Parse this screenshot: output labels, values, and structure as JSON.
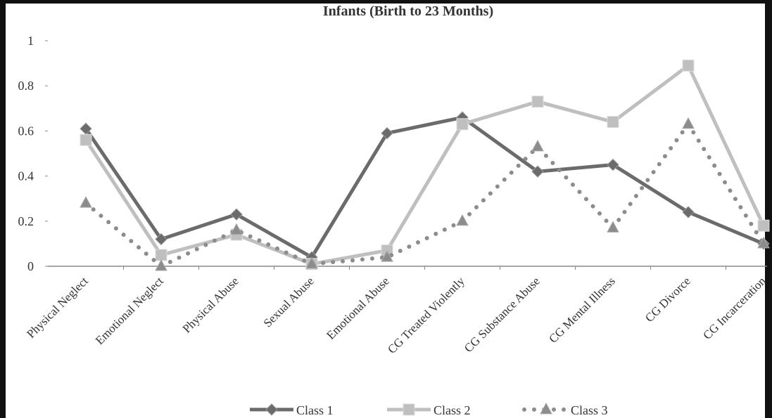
{
  "chart_data": {
    "type": "line",
    "title": "Infants (Birth to 23 Months)",
    "categories": [
      "Physical Neglect",
      "Emotional Neglect",
      "Physical Abuse",
      "Sexual Abuse",
      "Emotional Abuse",
      "CG Treated Violently",
      "CG Substance Abuse",
      "CG Mental Illness",
      "CG Divorce",
      "CG Incarceration"
    ],
    "series": [
      {
        "name": "Class 1",
        "color": "#6b6b6b",
        "marker": "diamond",
        "dash": "solid",
        "values": [
          0.61,
          0.12,
          0.23,
          0.04,
          0.59,
          0.66,
          0.42,
          0.45,
          0.24,
          0.1
        ]
      },
      {
        "name": "Class 2",
        "color": "#bfbfbf",
        "marker": "square",
        "dash": "solid",
        "values": [
          0.56,
          0.05,
          0.14,
          0.01,
          0.07,
          0.63,
          0.73,
          0.64,
          0.89,
          0.18
        ]
      },
      {
        "name": "Class 3",
        "color": "#8c8c8c",
        "marker": "triangle",
        "dash": "dotted",
        "values": [
          0.28,
          0.0,
          0.16,
          0.01,
          0.04,
          0.2,
          0.53,
          0.17,
          0.63,
          0.1
        ]
      }
    ],
    "ylim": [
      0,
      1
    ],
    "yticks": [
      0,
      0.2,
      0.4,
      0.6,
      0.8,
      1
    ],
    "grid": false,
    "legend": "bottom"
  }
}
